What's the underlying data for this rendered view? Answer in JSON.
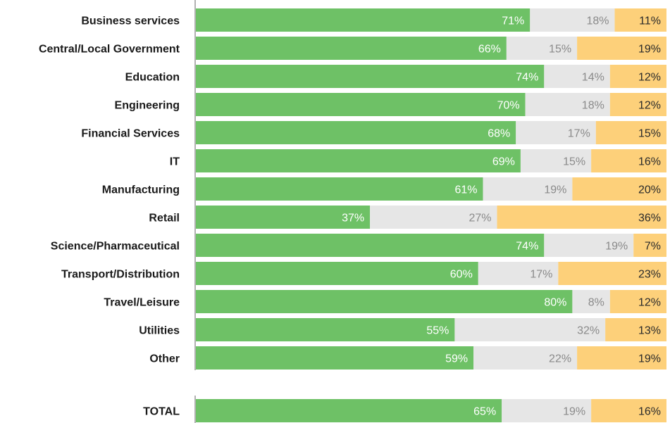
{
  "colors": {
    "segment_1": "#6ec166",
    "segment_2": "#e6e6e6",
    "segment_3": "#fdd07a",
    "label_on_segment_1": "#ffffff",
    "label_on_segment_2": "#8a8a8a",
    "label_on_segment_3": "#2a2a2a",
    "axis": "#666666"
  },
  "chart_data": {
    "type": "bar",
    "orientation": "horizontal",
    "stacked": true,
    "normalized": true,
    "unit": "%",
    "grid": false,
    "legend": "none",
    "xlim": [
      0,
      100
    ],
    "categories": [
      "Business services",
      "Central/Local Government",
      "Education",
      "Engineering",
      "Financial Services",
      "IT",
      "Manufacturing",
      "Retail",
      "Science/Pharmaceutical",
      "Transport/Distribution",
      "Travel/Leisure",
      "Utilities",
      "Other",
      "TOTAL"
    ],
    "series": [
      {
        "values": [
          71,
          66,
          74,
          70,
          68,
          69,
          61,
          37,
          74,
          60,
          80,
          55,
          59,
          65
        ]
      },
      {
        "values": [
          18,
          15,
          14,
          18,
          17,
          15,
          19,
          27,
          19,
          17,
          8,
          32,
          22,
          19
        ]
      },
      {
        "values": [
          11,
          19,
          12,
          12,
          15,
          16,
          20,
          36,
          7,
          23,
          12,
          13,
          19,
          16
        ]
      }
    ],
    "value_labels": [
      [
        "71%",
        "66%",
        "74%",
        "70%",
        "68%",
        "69%",
        "61%",
        "37%",
        "74%",
        "60%",
        "80%",
        "55%",
        "59%",
        "65%"
      ],
      [
        "18%",
        "15%",
        "14%",
        "18%",
        "17%",
        "15%",
        "19%",
        "27%",
        "19%",
        "17%",
        "8%",
        "32%",
        "22%",
        "19%"
      ],
      [
        "11%",
        "19%",
        "12%",
        "12%",
        "15%",
        "16%",
        "20%",
        "36%",
        "7%",
        "23%",
        "12%",
        "13%",
        "19%",
        "16%"
      ]
    ]
  }
}
